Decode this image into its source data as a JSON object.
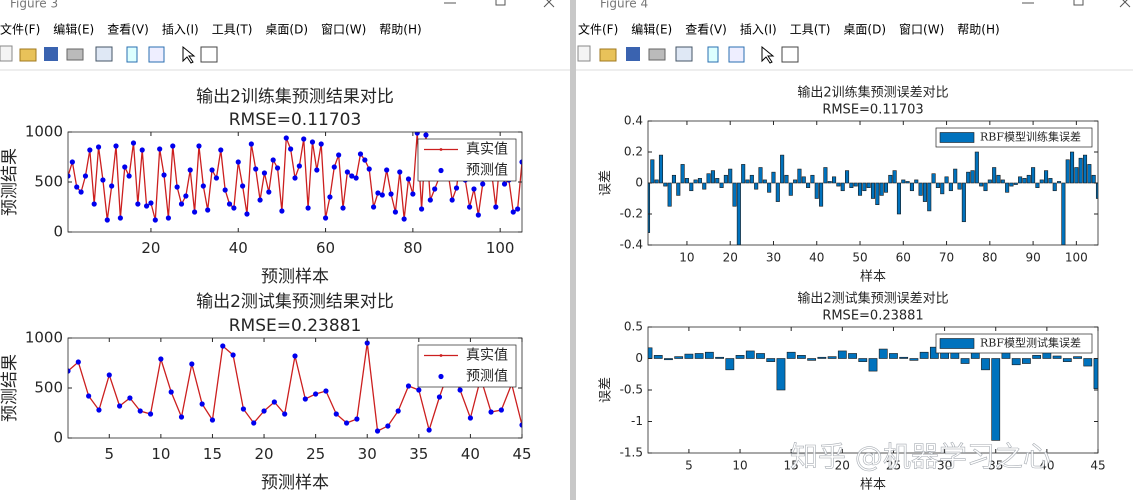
{
  "windows": [
    {
      "title": "Figure 3",
      "menu": [
        "文件(F)",
        "编辑(E)",
        "查看(V)",
        "插入(I)",
        "工具(T)",
        "桌面(D)",
        "窗口(W)",
        "帮助(H)"
      ]
    },
    {
      "title": "Figure 4",
      "menu": [
        "文件(F)",
        "编辑(E)",
        "查看(V)",
        "插入(I)",
        "工具(T)",
        "桌面(D)",
        "窗口(W)",
        "帮助(H)"
      ]
    }
  ],
  "watermark": "知乎 @机器学习之心",
  "chart_data": [
    {
      "type": "line",
      "title": "输出2训练集预测结果对比",
      "subtitle": "RMSE=0.11703",
      "xlabel": "预测样本",
      "ylabel": "预测结果",
      "xlim": [
        1,
        105
      ],
      "xticks": [
        20,
        40,
        60,
        80,
        100
      ],
      "ylim": [
        0,
        1000
      ],
      "yticks": [
        0,
        500,
        1000
      ],
      "legend": "northeast",
      "x": [
        1,
        2,
        3,
        4,
        5,
        6,
        7,
        8,
        9,
        10,
        11,
        12,
        13,
        14,
        15,
        16,
        17,
        18,
        19,
        20,
        21,
        22,
        23,
        24,
        25,
        26,
        27,
        28,
        29,
        30,
        31,
        32,
        33,
        34,
        35,
        36,
        37,
        38,
        39,
        40,
        41,
        42,
        43,
        44,
        45,
        46,
        47,
        48,
        49,
        50,
        51,
        52,
        53,
        54,
        55,
        56,
        57,
        58,
        59,
        60,
        61,
        62,
        63,
        64,
        65,
        66,
        67,
        68,
        69,
        70,
        71,
        72,
        73,
        74,
        75,
        76,
        77,
        78,
        79,
        80,
        81,
        82,
        83,
        84,
        85,
        86,
        87,
        88,
        89,
        90,
        91,
        92,
        93,
        94,
        95,
        96,
        97,
        98,
        99,
        100,
        101,
        102,
        103,
        104,
        105
      ],
      "series": [
        {
          "name": "真实值",
          "color": "#cc1f1f",
          "mode": "lines+markers",
          "values": [
            560,
            700,
            450,
            400,
            560,
            820,
            280,
            850,
            520,
            120,
            460,
            860,
            140,
            650,
            560,
            890,
            280,
            820,
            260,
            290,
            120,
            830,
            570,
            140,
            860,
            450,
            280,
            360,
            620,
            200,
            860,
            460,
            220,
            620,
            540,
            820,
            420,
            280,
            240,
            700,
            460,
            180,
            880,
            630,
            320,
            590,
            400,
            720,
            640,
            210,
            940,
            830,
            540,
            660,
            930,
            240,
            900,
            620,
            880,
            140,
            350,
            650,
            770,
            240,
            600,
            560,
            540,
            780,
            720,
            630,
            250,
            390,
            370,
            620,
            380,
            200,
            600,
            130,
            530,
            380,
            990,
            230,
            970,
            320,
            430,
            540,
            880,
            610,
            320,
            440,
            780,
            520,
            250,
            430,
            170,
            480,
            900,
            610,
            250,
            750,
            480,
            520,
            200,
            230,
            700
          ]
        },
        {
          "name": "预测值",
          "color": "#0000ee",
          "mode": "markers",
          "values": [
            560,
            700,
            450,
            400,
            560,
            820,
            280,
            850,
            520,
            120,
            460,
            860,
            140,
            650,
            560,
            890,
            280,
            820,
            260,
            290,
            120,
            830,
            570,
            140,
            860,
            450,
            280,
            360,
            620,
            200,
            860,
            460,
            220,
            620,
            540,
            820,
            420,
            280,
            240,
            700,
            460,
            180,
            880,
            630,
            320,
            590,
            400,
            720,
            640,
            210,
            940,
            830,
            540,
            660,
            930,
            240,
            900,
            620,
            880,
            140,
            350,
            650,
            770,
            240,
            600,
            560,
            540,
            780,
            720,
            630,
            250,
            390,
            370,
            620,
            380,
            200,
            600,
            130,
            530,
            380,
            990,
            230,
            970,
            320,
            430,
            540,
            880,
            610,
            320,
            440,
            780,
            520,
            250,
            430,
            170,
            480,
            900,
            610,
            250,
            750,
            480,
            520,
            200,
            230,
            700
          ]
        }
      ]
    },
    {
      "type": "line",
      "title": "输出2测试集预测结果对比",
      "subtitle": "RMSE=0.23881",
      "xlabel": "预测样本",
      "ylabel": "预测结果",
      "xlim": [
        1,
        45
      ],
      "xticks": [
        5,
        10,
        15,
        20,
        25,
        30,
        35,
        40,
        45
      ],
      "ylim": [
        0,
        1000
      ],
      "yticks": [
        0,
        500,
        1000
      ],
      "legend": "northeast",
      "x": [
        1,
        2,
        3,
        4,
        5,
        6,
        7,
        8,
        9,
        10,
        11,
        12,
        13,
        14,
        15,
        16,
        17,
        18,
        19,
        20,
        21,
        22,
        23,
        24,
        25,
        26,
        27,
        28,
        29,
        30,
        31,
        32,
        33,
        34,
        35,
        36,
        37,
        38,
        39,
        40,
        41,
        42,
        43,
        44,
        45
      ],
      "series": [
        {
          "name": "真实值",
          "color": "#cc1f1f",
          "mode": "lines+markers",
          "values": [
            670,
            760,
            420,
            280,
            630,
            320,
            400,
            270,
            240,
            790,
            460,
            210,
            740,
            340,
            180,
            920,
            830,
            290,
            150,
            270,
            360,
            240,
            820,
            390,
            440,
            470,
            240,
            150,
            190,
            950,
            70,
            120,
            270,
            520,
            480,
            80,
            410,
            700,
            480,
            200,
            600,
            260,
            280,
            540,
            130
          ]
        },
        {
          "name": "预测值",
          "color": "#0000ee",
          "mode": "markers",
          "values": [
            670,
            760,
            420,
            280,
            630,
            320,
            400,
            270,
            240,
            790,
            460,
            210,
            740,
            340,
            180,
            920,
            830,
            290,
            150,
            270,
            360,
            240,
            820,
            390,
            440,
            470,
            240,
            150,
            190,
            950,
            70,
            120,
            270,
            520,
            480,
            80,
            410,
            700,
            480,
            200,
            600,
            260,
            280,
            540,
            130
          ]
        }
      ]
    },
    {
      "type": "bar",
      "title": "输出2训练集预测误差对比",
      "subtitle": "RMSE=0.11703",
      "xlabel": "样本",
      "ylabel": "误差",
      "xlim": [
        1,
        105
      ],
      "xticks": [
        10,
        20,
        30,
        40,
        50,
        60,
        70,
        80,
        90,
        100
      ],
      "ylim": [
        -0.4,
        0.4
      ],
      "yticks": [
        -0.4,
        -0.2,
        0,
        0.2,
        0.4
      ],
      "legend": "northeast",
      "x": [
        1,
        2,
        3,
        4,
        5,
        6,
        7,
        8,
        9,
        10,
        11,
        12,
        13,
        14,
        15,
        16,
        17,
        18,
        19,
        20,
        21,
        22,
        23,
        24,
        25,
        26,
        27,
        28,
        29,
        30,
        31,
        32,
        33,
        34,
        35,
        36,
        37,
        38,
        39,
        40,
        41,
        42,
        43,
        44,
        45,
        46,
        47,
        48,
        49,
        50,
        51,
        52,
        53,
        54,
        55,
        56,
        57,
        58,
        59,
        60,
        61,
        62,
        63,
        64,
        65,
        66,
        67,
        68,
        69,
        70,
        71,
        72,
        73,
        74,
        75,
        76,
        77,
        78,
        79,
        80,
        81,
        82,
        83,
        84,
        85,
        86,
        87,
        88,
        89,
        90,
        91,
        92,
        93,
        94,
        95,
        96,
        97,
        98,
        99,
        100,
        101,
        102,
        103,
        104,
        105
      ],
      "series": [
        {
          "name": "RBF模型训练集误差",
          "color": "#0072bd",
          "values": [
            -0.32,
            0.15,
            0.02,
            0.18,
            -0.02,
            -0.15,
            0.05,
            -0.08,
            0.12,
            0.03,
            -0.05,
            0.02,
            0.03,
            -0.04,
            0.06,
            0.08,
            0.03,
            -0.03,
            0.05,
            0.09,
            -0.15,
            -0.4,
            0.12,
            0.02,
            0.05,
            -0.04,
            0.1,
            0.02,
            -0.06,
            0.07,
            -0.12,
            0.18,
            0.05,
            -0.08,
            0.02,
            0.09,
            0.04,
            -0.03,
            0.05,
            -0.1,
            -0.15,
            0.1,
            0.01,
            0.04,
            -0.02,
            -0.05,
            0.08,
            -0.03,
            -0.02,
            -0.08,
            -0.05,
            -0.03,
            -0.1,
            -0.14,
            -0.08,
            -0.06,
            0.05,
            0.08,
            -0.2,
            0.02,
            0.01,
            -0.05,
            0.02,
            -0.08,
            -0.12,
            -0.18,
            0.06,
            -0.03,
            -0.07,
            0.04,
            -0.05,
            0.09,
            -0.04,
            -0.25,
            0.07,
            0.08,
            0.2,
            -0.02,
            -0.05,
            0.02,
            0.1,
            0.05,
            0.02,
            -0.06,
            -0.02,
            -0.01,
            0.04,
            0.03,
            0.05,
            0.1,
            -0.03,
            0.02,
            0.08,
            0.03,
            -0.05,
            0.01,
            -0.4,
            0.15,
            0.2,
            0.1,
            0.16,
            0.18,
            0.12,
            0.05,
            -0.1
          ]
        }
      ]
    },
    {
      "type": "bar",
      "title": "输出2测试集预测误差对比",
      "subtitle": "RMSE=0.23881",
      "xlabel": "样本",
      "ylabel": "误差",
      "xlim": [
        1,
        45
      ],
      "xticks": [
        5,
        10,
        15,
        20,
        25,
        30,
        35,
        40,
        45
      ],
      "ylim": [
        -1.5,
        0.5
      ],
      "yticks": [
        -1.5,
        -1,
        -0.5,
        0,
        0.5
      ],
      "legend": "northeast",
      "x": [
        1,
        2,
        3,
        4,
        5,
        6,
        7,
        8,
        9,
        10,
        11,
        12,
        13,
        14,
        15,
        16,
        17,
        18,
        19,
        20,
        21,
        22,
        23,
        24,
        25,
        26,
        27,
        28,
        29,
        30,
        31,
        32,
        33,
        34,
        35,
        36,
        37,
        38,
        39,
        40,
        41,
        42,
        43,
        44,
        45
      ],
      "series": [
        {
          "name": "RBF模型测试集误差",
          "color": "#0072bd",
          "values": [
            0.17,
            0.05,
            -0.02,
            0.03,
            0.07,
            0.08,
            0.1,
            0.02,
            -0.18,
            0.05,
            0.12,
            0.08,
            -0.05,
            -0.5,
            0.1,
            0.05,
            -0.03,
            0.02,
            0.03,
            0.12,
            0.08,
            -0.05,
            -0.2,
            0.15,
            0.08,
            0.02,
            -0.03,
            0.1,
            0.18,
            0.25,
            0.1,
            -0.08,
            0.12,
            -0.18,
            -1.3,
            0.1,
            -0.1,
            -0.08,
            0.05,
            0.1,
            0.04,
            -0.05,
            0.03,
            -0.12,
            -0.48
          ]
        }
      ]
    }
  ]
}
